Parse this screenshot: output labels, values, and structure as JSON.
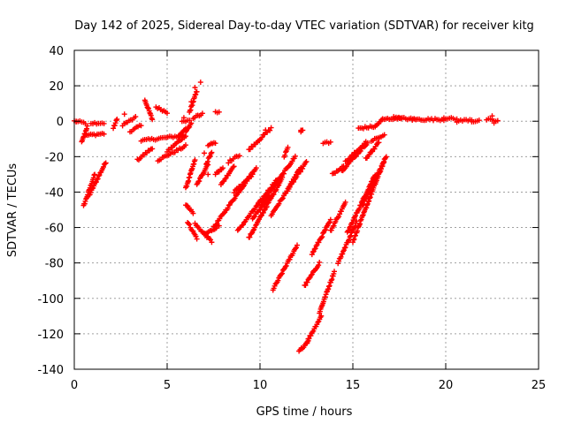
{
  "chart_data": {
    "type": "scatter",
    "title": "Day 142 of 2025, Sidereal Day-to-day VTEC variation (SDTVAR) for receiver kitg",
    "xlabel": "GPS time / hours",
    "ylabel": "SDTVAR / TECUs",
    "xlim": [
      0,
      25
    ],
    "ylim": [
      -140,
      40
    ],
    "xticks": [
      "0",
      "5",
      "10",
      "15",
      "20",
      "25"
    ],
    "yticks": [
      "-140",
      "-120",
      "-100",
      "-80",
      "-60",
      "-40",
      "-20",
      "0",
      "20",
      "40"
    ],
    "grid": true,
    "marker": "+",
    "color": "#ff0000",
    "segments": [
      {
        "x0": 0.0,
        "y0": 0,
        "x1": 0.6,
        "y1": -1
      },
      {
        "x0": 0.4,
        "y0": -12,
        "x1": 0.7,
        "y1": -3
      },
      {
        "x0": 0.5,
        "y0": -48,
        "x1": 1.1,
        "y1": -30
      },
      {
        "x0": 0.8,
        "y0": -42,
        "x1": 1.7,
        "y1": -23
      },
      {
        "x0": 0.9,
        "y0": -1,
        "x1": 1.6,
        "y1": -1
      },
      {
        "x0": 0.6,
        "y0": -8,
        "x1": 1.6,
        "y1": -7
      },
      {
        "x0": 2.1,
        "y0": -4,
        "x1": 2.3,
        "y1": 1
      },
      {
        "x0": 2.6,
        "y0": -2,
        "x1": 3.3,
        "y1": 2
      },
      {
        "x0": 3.0,
        "y0": -6,
        "x1": 3.6,
        "y1": -2
      },
      {
        "x0": 3.4,
        "y0": -22,
        "x1": 4.2,
        "y1": -15
      },
      {
        "x0": 3.6,
        "y0": -11,
        "x1": 5.9,
        "y1": -8
      },
      {
        "x0": 3.8,
        "y0": 12,
        "x1": 4.2,
        "y1": 1
      },
      {
        "x0": 4.4,
        "y0": 8,
        "x1": 5.0,
        "y1": 5
      },
      {
        "x0": 4.5,
        "y0": -22,
        "x1": 6.0,
        "y1": -14
      },
      {
        "x0": 5.0,
        "y0": -17,
        "x1": 6.0,
        "y1": -8
      },
      {
        "x0": 5.6,
        "y0": -9,
        "x1": 6.0,
        "y1": -4
      },
      {
        "x0": 5.8,
        "y0": 0,
        "x1": 6.2,
        "y1": 0
      },
      {
        "x0": 6.0,
        "y0": -6,
        "x1": 6.3,
        "y1": -1
      },
      {
        "x0": 6.0,
        "y0": -38,
        "x1": 6.5,
        "y1": -22
      },
      {
        "x0": 6.2,
        "y0": 5,
        "x1": 6.6,
        "y1": 17
      },
      {
        "x0": 6.4,
        "y0": 2,
        "x1": 6.9,
        "y1": 4
      },
      {
        "x0": 6.6,
        "y0": -36,
        "x1": 7.2,
        "y1": -24
      },
      {
        "x0": 6.1,
        "y0": -57,
        "x1": 6.6,
        "y1": -66
      },
      {
        "x0": 6.5,
        "y0": -58,
        "x1": 7.4,
        "y1": -68
      },
      {
        "x0": 6.0,
        "y0": -47,
        "x1": 6.4,
        "y1": -52
      },
      {
        "x0": 7.0,
        "y0": -64,
        "x1": 7.8,
        "y1": -59
      },
      {
        "x0": 7.1,
        "y0": -24,
        "x1": 7.4,
        "y1": -18
      },
      {
        "x0": 7.2,
        "y0": -14,
        "x1": 7.6,
        "y1": -12
      },
      {
        "x0": 7.6,
        "y0": 5,
        "x1": 7.8,
        "y1": 5
      },
      {
        "x0": 7.6,
        "y0": -30,
        "x1": 8.0,
        "y1": -26
      },
      {
        "x0": 7.5,
        "y0": -60,
        "x1": 9.8,
        "y1": -26
      },
      {
        "x0": 7.9,
        "y0": -36,
        "x1": 8.6,
        "y1": -25
      },
      {
        "x0": 8.3,
        "y0": -23,
        "x1": 8.9,
        "y1": -19
      },
      {
        "x0": 8.6,
        "y0": -40,
        "x1": 9.6,
        "y1": -30
      },
      {
        "x0": 8.8,
        "y0": -62,
        "x1": 10.9,
        "y1": -33
      },
      {
        "x0": 9.4,
        "y0": -66,
        "x1": 11.2,
        "y1": -32
      },
      {
        "x0": 9.4,
        "y0": -16,
        "x1": 10.6,
        "y1": -4
      },
      {
        "x0": 9.6,
        "y0": -55,
        "x1": 10.5,
        "y1": -43
      },
      {
        "x0": 10.0,
        "y0": -48,
        "x1": 11.9,
        "y1": -20
      },
      {
        "x0": 10.6,
        "y0": -53,
        "x1": 12.5,
        "y1": -23
      },
      {
        "x0": 11.3,
        "y0": -20,
        "x1": 11.5,
        "y1": -15
      },
      {
        "x0": 10.7,
        "y0": -95,
        "x1": 12.0,
        "y1": -70
      },
      {
        "x0": 11.5,
        "y0": -38,
        "x1": 12.2,
        "y1": -26
      },
      {
        "x0": 12.2,
        "y0": -5,
        "x1": 12.3,
        "y1": -5
      },
      {
        "x0": 12.4,
        "y0": -93,
        "x1": 13.2,
        "y1": -80
      },
      {
        "x0": 12.8,
        "y0": -75,
        "x1": 13.8,
        "y1": -56
      },
      {
        "x0": 12.1,
        "y0": -130,
        "x1": 12.6,
        "y1": -124
      },
      {
        "x0": 12.5,
        "y0": -125,
        "x1": 13.3,
        "y1": -110
      },
      {
        "x0": 13.2,
        "y0": -108,
        "x1": 14.0,
        "y1": -85
      },
      {
        "x0": 13.4,
        "y0": -12,
        "x1": 13.8,
        "y1": -12
      },
      {
        "x0": 13.8,
        "y0": -62,
        "x1": 14.6,
        "y1": -46
      },
      {
        "x0": 13.9,
        "y0": -30,
        "x1": 14.5,
        "y1": -25
      },
      {
        "x0": 14.4,
        "y0": -28,
        "x1": 15.8,
        "y1": -12
      },
      {
        "x0": 14.6,
        "y0": -23,
        "x1": 15.7,
        "y1": -12
      },
      {
        "x0": 14.2,
        "y0": -80,
        "x1": 15.2,
        "y1": -57
      },
      {
        "x0": 14.7,
        "y0": -63,
        "x1": 16.2,
        "y1": -30
      },
      {
        "x0": 15.0,
        "y0": -68,
        "x1": 16.7,
        "y1": -22
      },
      {
        "x0": 15.5,
        "y0": -48,
        "x1": 16.8,
        "y1": -20
      },
      {
        "x0": 15.7,
        "y0": -21,
        "x1": 16.4,
        "y1": -12
      },
      {
        "x0": 16.0,
        "y0": -11,
        "x1": 16.7,
        "y1": -8
      },
      {
        "x0": 15.3,
        "y0": -4,
        "x1": 16.2,
        "y1": -3
      },
      {
        "x0": 16.2,
        "y0": -3,
        "x1": 16.6,
        "y1": 1
      },
      {
        "x0": 16.6,
        "y0": 1,
        "x1": 17.6,
        "y1": 2
      },
      {
        "x0": 17.2,
        "y0": 2,
        "x1": 18.4,
        "y1": 1
      },
      {
        "x0": 18.2,
        "y0": 1,
        "x1": 19.9,
        "y1": 1
      },
      {
        "x0": 19.9,
        "y0": 2,
        "x1": 20.6,
        "y1": 1
      },
      {
        "x0": 20.6,
        "y0": 0,
        "x1": 21.4,
        "y1": 1
      },
      {
        "x0": 21.4,
        "y0": 0,
        "x1": 21.8,
        "y1": 0
      },
      {
        "x0": 22.2,
        "y0": 1,
        "x1": 22.8,
        "y1": 0
      }
    ],
    "points": [
      {
        "x": 6.8,
        "y": 22
      },
      {
        "x": 6.5,
        "y": 19
      },
      {
        "x": 6.3,
        "y": 11
      },
      {
        "x": 7.0,
        "y": -18
      },
      {
        "x": 10.3,
        "y": -5
      },
      {
        "x": 12.2,
        "y": -6
      },
      {
        "x": 5.9,
        "y": 2
      },
      {
        "x": 7.2,
        "y": -30
      },
      {
        "x": 22.5,
        "y": 3
      },
      {
        "x": 22.6,
        "y": -1
      },
      {
        "x": 0.1,
        "y": 0
      },
      {
        "x": 2.7,
        "y": 4
      }
    ]
  }
}
